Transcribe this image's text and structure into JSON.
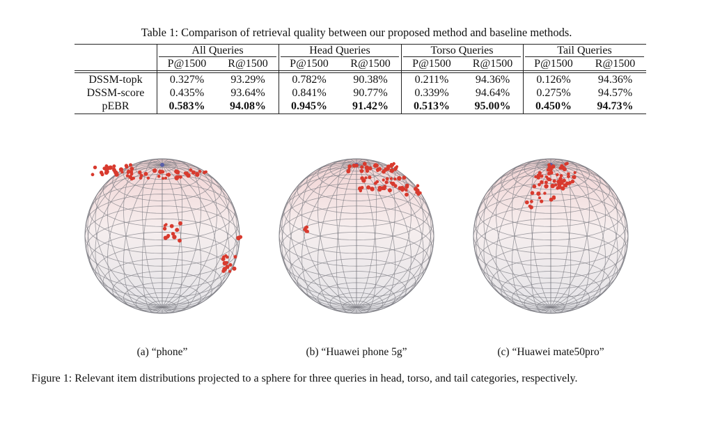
{
  "table": {
    "caption": "Table 1: Comparison of retrieval quality between our proposed method and baseline methods.",
    "groups": [
      "All Queries",
      "Head Queries",
      "Torso Queries",
      "Tail Queries"
    ],
    "subheaders": [
      "P@1500",
      "R@1500",
      "P@1500",
      "R@1500",
      "P@1500",
      "R@1500",
      "P@1500",
      "R@1500"
    ],
    "rows": [
      [
        "DSSM-topk",
        "0.327%",
        "93.29%",
        "0.782%",
        "90.38%",
        "0.211%",
        "94.36%",
        "0.126%",
        "94.36%"
      ],
      [
        "DSSM-score",
        "0.435%",
        "93.64%",
        "0.841%",
        "90.77%",
        "0.339%",
        "94.64%",
        "0.275%",
        "94.57%"
      ],
      [
        "pEBR",
        "0.583%",
        "94.08%",
        "0.945%",
        "91.42%",
        "0.513%",
        "95.00%",
        "0.450%",
        "94.73%"
      ]
    ]
  },
  "figure": {
    "subfigures": [
      "(a) “phone”",
      "(b) “Huawei phone 5g”",
      "(c) “Huawei mate50pro”"
    ],
    "caption": "Figure 1: Relevant item distributions projected to a sphere for three queries in head, torso, and tail categories, respectively."
  }
}
